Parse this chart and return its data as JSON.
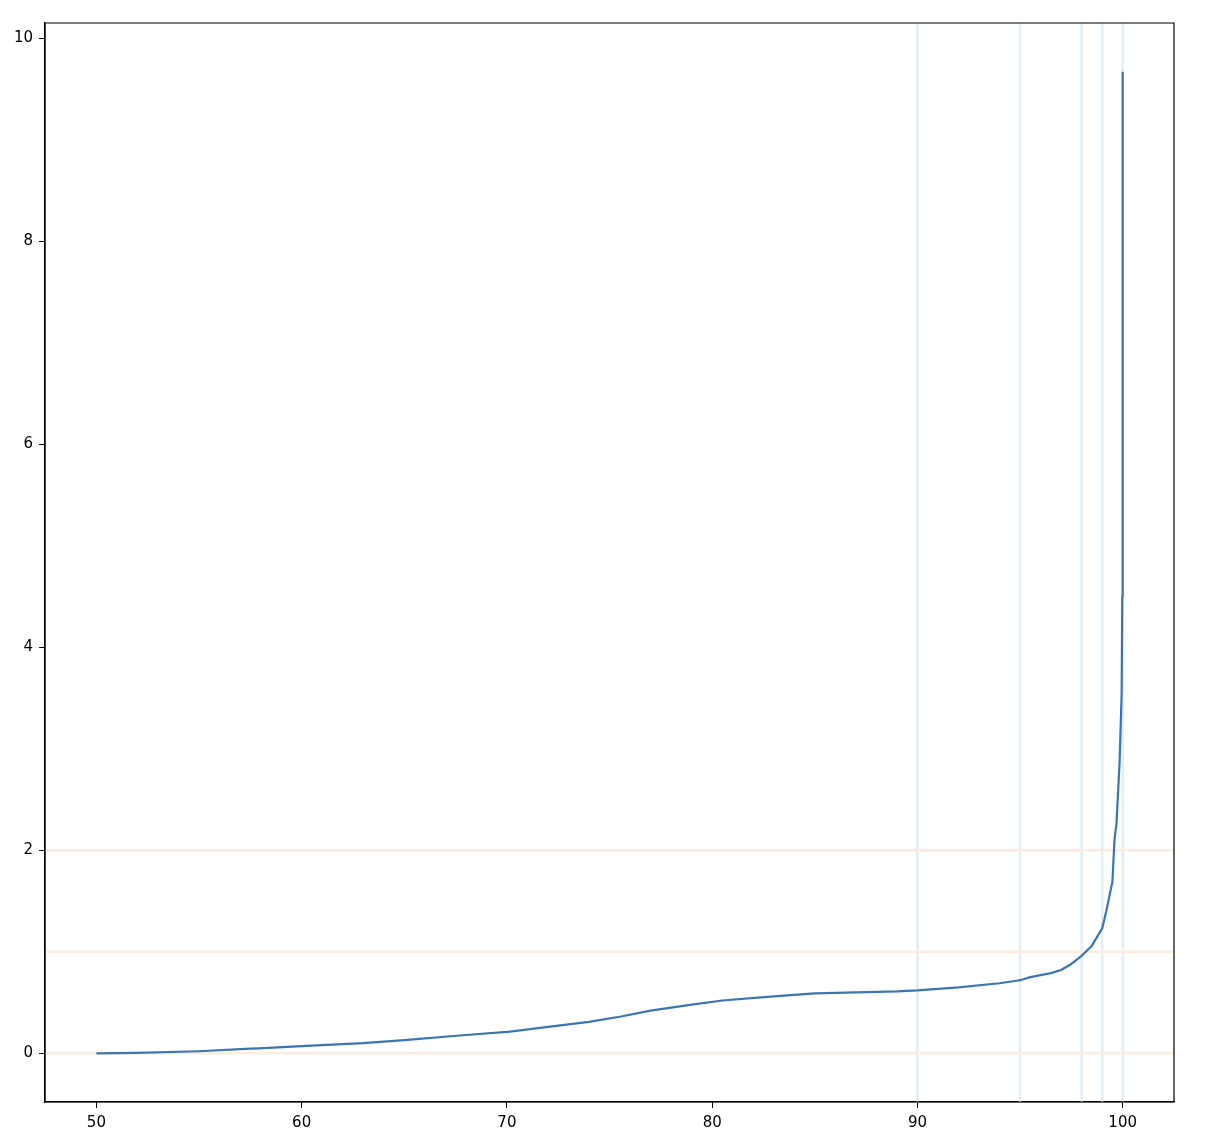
{
  "chart_data": {
    "type": "line",
    "x": [
      50,
      52,
      55,
      57,
      60,
      63,
      65,
      68,
      70,
      72,
      74,
      75.5,
      77,
      79,
      80.5,
      83,
      85,
      87,
      89,
      90,
      92,
      94,
      95,
      95.5,
      96.5,
      97,
      97.5,
      98,
      98.5,
      99,
      99.2,
      99.5,
      99.6,
      99.7,
      99.85,
      99.95,
      99.98,
      100
    ],
    "series": [
      {
        "color": "#3a76af",
        "values": [
          0,
          0.003,
          0.02,
          0.04,
          0.07,
          0.1,
          0.13,
          0.18,
          0.21,
          0.26,
          0.31,
          0.36,
          0.42,
          0.48,
          0.52,
          0.56,
          0.59,
          0.6,
          0.61,
          0.62,
          0.65,
          0.69,
          0.72,
          0.75,
          0.79,
          0.82,
          0.88,
          0.96,
          1.06,
          1.23,
          1.4,
          1.69,
          2.1,
          2.27,
          2.87,
          3.55,
          4.5,
          9.67
        ]
      }
    ],
    "xlim": [
      47.5,
      102.5
    ],
    "xticks": [
      50,
      60,
      70,
      80,
      90,
      100
    ],
    "ylim": [
      -0.48,
      10.15
    ],
    "yticks": [
      0,
      2,
      4,
      6,
      8,
      10
    ],
    "marker": "none",
    "ref_lines": [
      {
        "axis": "x",
        "value": 90,
        "color": "#e4ecf4"
      },
      {
        "axis": "x",
        "value": 95,
        "color": "#e4ecf4"
      },
      {
        "axis": "x",
        "value": 98,
        "color": "#e4ecf4"
      },
      {
        "axis": "x",
        "value": 99,
        "color": "#e4ecf4"
      },
      {
        "axis": "x",
        "value": 100,
        "color": "#e4ecf4"
      },
      {
        "axis": "y",
        "value": 0,
        "color": "#fcebe0"
      },
      {
        "axis": "y",
        "value": 1,
        "color": "#fcebe0"
      },
      {
        "axis": "y",
        "value": 2,
        "color": "#fcebe0"
      }
    ]
  }
}
